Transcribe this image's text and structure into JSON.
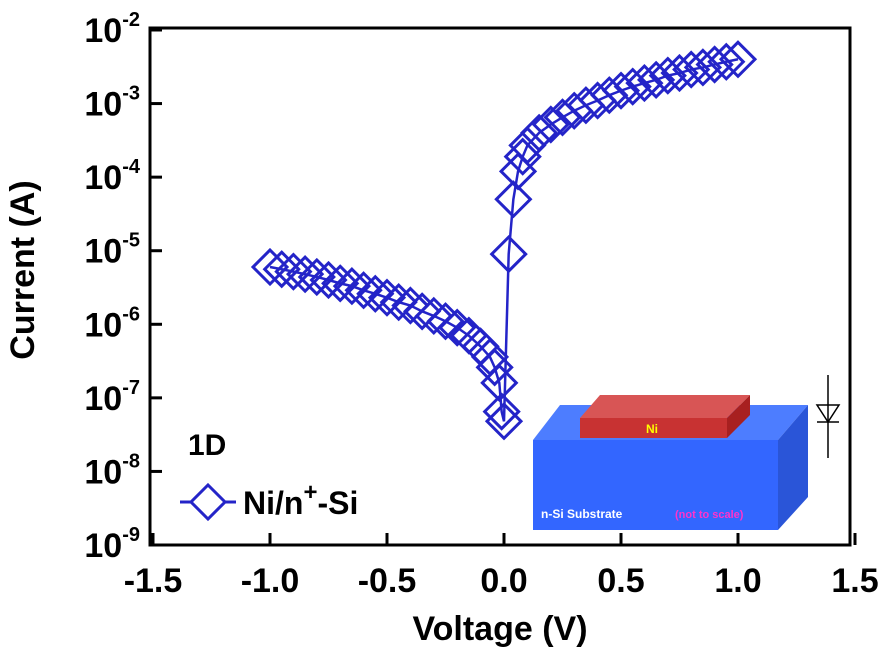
{
  "chart_data": {
    "type": "line",
    "xlabel": "Voltage (V)",
    "ylabel": "Current (A)",
    "annotations": [
      "1D",
      "Ni",
      "n-Si Substrate",
      "(not to scale)"
    ],
    "ylog": true,
    "marker": "diamond",
    "xlim": [
      -1.5,
      1.5
    ],
    "xticks": [
      -1.5,
      {
        "value": -1,
        "label": "-1.0"
      },
      -0.5,
      {
        "value": 0,
        "label": "0.0"
      },
      0.5,
      {
        "value": 1,
        "label": "1.0"
      },
      1.5
    ],
    "ylim": [
      1e-09,
      0.01
    ],
    "yticks": [
      {
        "value": 1e-09,
        "label": "10-9"
      },
      {
        "value": 1e-08,
        "label": "10-8"
      },
      {
        "value": 1e-07,
        "label": "10-7"
      },
      {
        "value": 1e-06,
        "label": "10-6"
      },
      {
        "value": 1e-05,
        "label": "10-5"
      },
      {
        "value": 0.0001,
        "label": "10-4"
      },
      {
        "value": 0.001,
        "label": "10-3"
      },
      {
        "value": 0.01,
        "label": "10-2"
      }
    ],
    "series": [
      {
        "name": "Ni/n+-Si",
        "color": "#2424c8",
        "x": [
          -1.0,
          -0.95,
          -0.9,
          -0.85,
          -0.8,
          -0.75,
          -0.7,
          -0.65,
          -0.6,
          -0.55,
          -0.5,
          -0.45,
          -0.4,
          -0.35,
          -0.3,
          -0.25,
          -0.2,
          -0.15,
          -0.1,
          -0.06,
          -0.04,
          -0.02,
          -0.01,
          0.0,
          0.02,
          0.04,
          0.06,
          0.08,
          0.1,
          0.15,
          0.2,
          0.25,
          0.3,
          0.35,
          0.4,
          0.45,
          0.5,
          0.55,
          0.6,
          0.65,
          0.7,
          0.75,
          0.8,
          0.85,
          0.9,
          0.95,
          1.0
        ],
        "values": [
          6e-06,
          5.6e-06,
          5.2e-06,
          4.8e-06,
          4.4e-06,
          4e-06,
          3.6e-06,
          3.3e-06,
          2.9e-06,
          2.6e-06,
          2.3e-06,
          2e-06,
          1.8e-06,
          1.5e-06,
          1.3e-06,
          1.1e-06,
          9e-07,
          7e-07,
          5e-07,
          3.6e-07,
          2.6e-07,
          1.6e-07,
          6.5e-08,
          4.8e-08,
          9e-06,
          5e-05,
          0.00012,
          0.00019,
          0.00027,
          0.0004,
          0.00052,
          0.00065,
          0.0008,
          0.00095,
          0.0011,
          0.0013,
          0.0015,
          0.0017,
          0.0019,
          0.0021,
          0.0024,
          0.0026,
          0.0029,
          0.0031,
          0.0034,
          0.0037,
          0.004
        ]
      }
    ]
  }
}
